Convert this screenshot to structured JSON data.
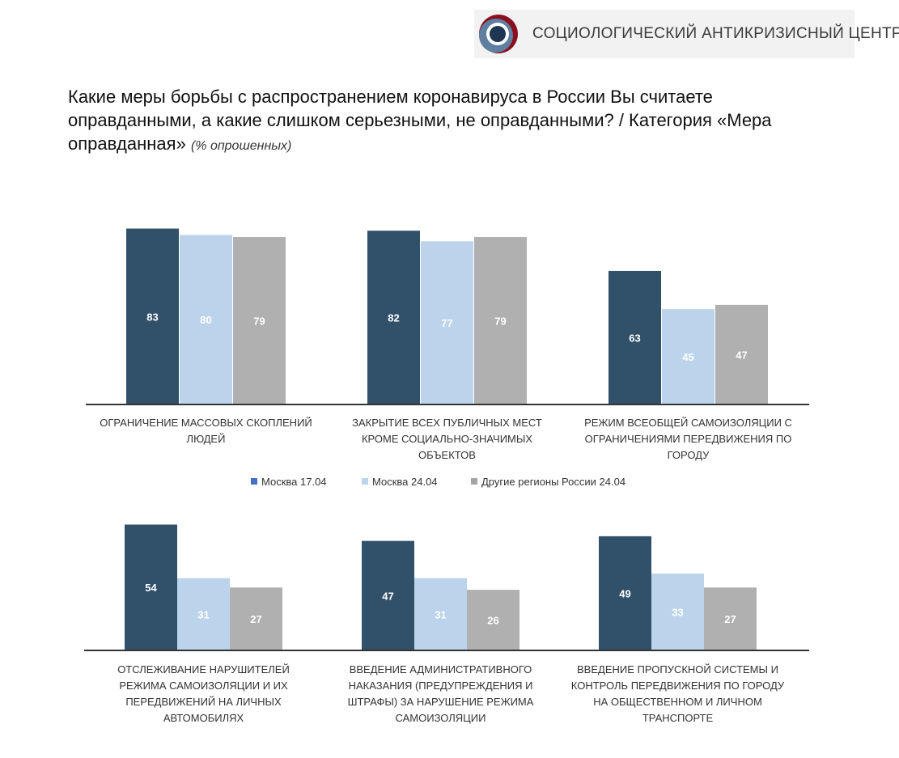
{
  "logo": {
    "text": "СОЦИОЛОГИЧЕСКИЙ АНТИКРИЗИСНЫЙ ЦЕНТР"
  },
  "title": {
    "main": "Какие меры борьбы с распространением коронавируса в России Вы считаете оправданными, а какие слишком серьезными, не оправданными? / Категория «Мера оправданная»",
    "note": "(% опрошенных)"
  },
  "chart_data": {
    "type": "bar",
    "unit": "%",
    "series": [
      {
        "name": "Москва 17.04",
        "color": "#31516b"
      },
      {
        "name": "Москва 24.04",
        "color": "#bcd4eb"
      },
      {
        "name": "Другие регионы России 24.04",
        "color": "#b0b0b0"
      }
    ],
    "legend_colors": [
      "#4472c4",
      "#bcd4eb",
      "#a5a5a5"
    ],
    "panels": [
      {
        "categories": [
          {
            "label": [
              "ОГРАНИЧЕНИЕ МАССОВЫХ СКОПЛЕНИЙ",
              "ЛЮДЕЙ"
            ],
            "values": [
              83,
              80,
              79
            ]
          },
          {
            "label": [
              "ЗАКРЫТИЕ ВСЕХ ПУБЛИЧНЫХ МЕСТ",
              "КРОМЕ СОЦИАЛЬНО-ЗНАЧИМЫХ",
              "ОБЪЕКТОВ"
            ],
            "values": [
              82,
              77,
              79
            ]
          },
          {
            "label": [
              "РЕЖИМ ВСЕОБЩЕЙ САМОИЗОЛЯЦИИ С",
              "ОГРАНИЧЕНИЯМИ ПЕРЕДВИЖЕНИЯ ПО",
              "ГОРОДУ"
            ],
            "values": [
              63,
              45,
              47
            ]
          }
        ]
      },
      {
        "categories": [
          {
            "label": [
              "ОТСЛЕЖИВАНИЕ НАРУШИТЕЛЕЙ",
              "РЕЖИМА САМОИЗОЛЯЦИИ И ИХ",
              "ПЕРЕДВИЖЕНИЙ НА ЛИЧНЫХ",
              "АВТОМОБИЛЯХ"
            ],
            "values": [
              54,
              31,
              27
            ]
          },
          {
            "label": [
              "ВВЕДЕНИЕ АДМИНИСТРАТИВНОГО",
              "НАКАЗАНИЯ (ПРЕДУПРЕЖДЕНИЯ И",
              "ШТРАФЫ) ЗА НАРУШЕНИЕ РЕЖИМА",
              "САМОИЗОЛЯЦИИ"
            ],
            "values": [
              47,
              31,
              26
            ]
          },
          {
            "label": [
              "ВВЕДЕНИЕ ПРОПУСКНОЙ СИСТЕМЫ И",
              "КОНТРОЛЬ ПЕРЕДВИЖЕНИЯ ПО ГОРОДУ",
              "НА ОБЩЕСТВЕННОМ И ЛИЧНОМ",
              "ТРАНСПОРТЕ"
            ],
            "values": [
              49,
              33,
              27
            ]
          }
        ]
      }
    ]
  }
}
